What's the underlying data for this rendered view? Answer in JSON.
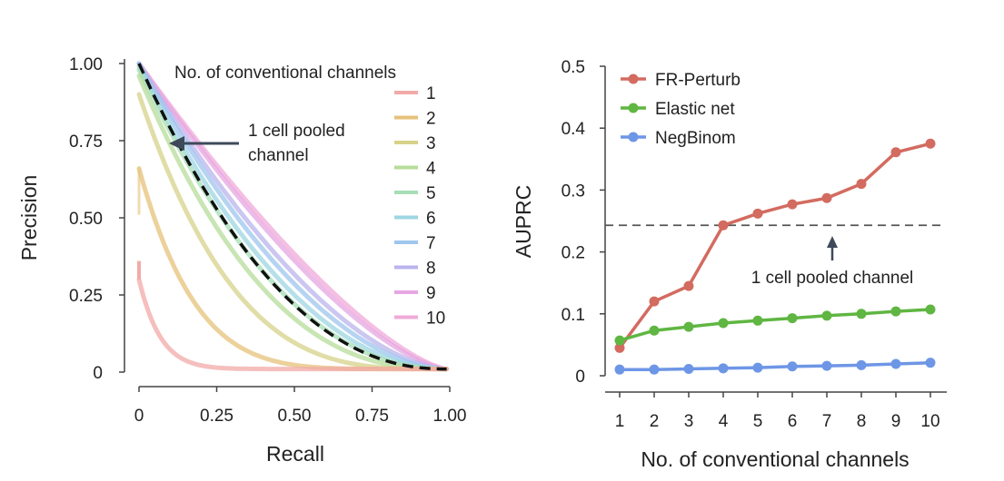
{
  "chart_data": [
    {
      "type": "line",
      "xlabel": "Recall",
      "ylabel": "Precision",
      "xlim": [
        0,
        1
      ],
      "ylim": [
        0,
        1
      ],
      "xticks": [
        "0",
        "0.25",
        "0.50",
        "0.75",
        "1.00"
      ],
      "yticks": [
        "0",
        "0.25",
        "0.50",
        "0.75",
        "1.00"
      ],
      "legend_title": "No. of conventional channels",
      "legend_position": "top-right",
      "series": [
        {
          "name": "1",
          "color": "#f2aaa8",
          "values_note": "",
          "y_start": 0.3,
          "exponent": 0.07
        },
        {
          "name": "2",
          "color": "#e6c27a",
          "y_start": 0.66,
          "exponent": 0.18
        },
        {
          "name": "3",
          "color": "#d6d28a",
          "y_start": 0.9,
          "exponent": 0.3
        },
        {
          "name": "4",
          "color": "#b6dc9a",
          "y_start": 0.96,
          "exponent": 0.4
        },
        {
          "name": "5",
          "color": "#a6deb6",
          "y_start": 0.98,
          "exponent": 0.46
        },
        {
          "name": "6",
          "color": "#9ed6e2",
          "y_start": 0.99,
          "exponent": 0.5
        },
        {
          "name": "7",
          "color": "#9ec6ee",
          "y_start": 1.0,
          "exponent": 0.55
        },
        {
          "name": "8",
          "color": "#bab4ec",
          "y_start": 1.0,
          "exponent": 0.6
        },
        {
          "name": "9",
          "color": "#e6a6e2",
          "y_start": 1.0,
          "exponent": 0.68
        },
        {
          "name": "10",
          "color": "#f0aad8",
          "y_start": 1.0,
          "exponent": 0.72
        }
      ],
      "reference": {
        "label_line1": "1 cell pooled",
        "label_line2": "channel",
        "color": "#111111",
        "y_start": 1.0,
        "exponent": 0.45
      },
      "curve_end": {
        "x": 0.99,
        "y": 0.01
      }
    },
    {
      "type": "line",
      "xlabel": "No. of conventional channels",
      "ylabel": "AUPRC",
      "x": [
        1,
        2,
        3,
        4,
        5,
        6,
        7,
        8,
        9,
        10
      ],
      "xticks": [
        "1",
        "2",
        "3",
        "4",
        "5",
        "6",
        "7",
        "8",
        "9",
        "10"
      ],
      "yticks": [
        "0",
        "0.1",
        "0.2",
        "0.3",
        "0.4",
        "0.5"
      ],
      "ylim": [
        0,
        0.5
      ],
      "legend_position": "top-left",
      "series": [
        {
          "name": "FR-Perturb",
          "color": "#d36b60",
          "values": [
            0.045,
            0.12,
            0.145,
            0.243,
            0.262,
            0.277,
            0.287,
            0.31,
            0.361,
            0.375
          ]
        },
        {
          "name": "Elastic net",
          "color": "#5fb642",
          "values": [
            0.057,
            0.073,
            0.079,
            0.085,
            0.089,
            0.093,
            0.097,
            0.1,
            0.104,
            0.107
          ]
        },
        {
          "name": "NegBinom",
          "color": "#6e96e6",
          "values": [
            0.01,
            0.01,
            0.011,
            0.012,
            0.013,
            0.015,
            0.016,
            0.017,
            0.019,
            0.021
          ]
        }
      ],
      "reference": {
        "value": 0.243,
        "label": "1 cell pooled channel",
        "color": "#555555"
      }
    }
  ]
}
